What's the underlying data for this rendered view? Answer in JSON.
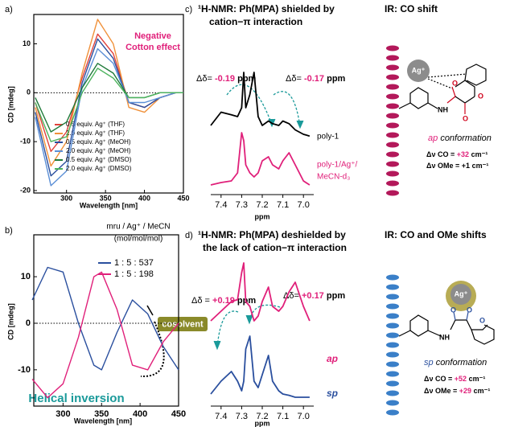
{
  "chart_data": [
    {
      "type": "line",
      "panel": "a)",
      "ylabel": "CD [mdeg]",
      "xlabel": "Wavelength [nm]",
      "annotation": [
        "Negative",
        "Cotton effect"
      ],
      "x": [
        260,
        280,
        300,
        320,
        340,
        360,
        380,
        400,
        420,
        440,
        450
      ],
      "xlim": [
        258,
        450
      ],
      "xticks": [
        300,
        350,
        400,
        450
      ],
      "ylim": [
        -20.5,
        16
      ],
      "yticks": [
        -20,
        -10,
        0,
        10
      ],
      "series": [
        {
          "name": "0.5 equiv. Ag⁺ (THF)",
          "color": "#e0413a",
          "values": [
            -2,
            -12,
            -8,
            3,
            12,
            8,
            -2,
            -3,
            -1,
            0,
            0
          ]
        },
        {
          "name": "2.0 equiv. Ag⁺ (THF)",
          "color": "#f0913a",
          "values": [
            -3,
            -15,
            -10,
            4,
            15,
            10,
            -3,
            -4,
            -1,
            0,
            0
          ]
        },
        {
          "name": "0.5 equiv. Ag⁺ (MeOH)",
          "color": "#2a4f9e",
          "values": [
            -4,
            -17,
            -14,
            2,
            11,
            7,
            -2,
            -3,
            -1,
            0,
            0
          ]
        },
        {
          "name": "2.0 equiv. Ag⁺ (MeOH)",
          "color": "#5b8fd6",
          "values": [
            -5,
            -19,
            -16,
            1,
            9,
            6,
            -2,
            -2,
            -1,
            0,
            0
          ]
        },
        {
          "name": "0.5 equiv. Ag⁺ (DMSO)",
          "color": "#1f7a3a",
          "values": [
            -1,
            -8,
            -6,
            1,
            6,
            4,
            -1,
            -1,
            0,
            0,
            0
          ]
        },
        {
          "name": "2.0 equiv. Ag⁺ (DMSO)",
          "color": "#4db35e",
          "values": [
            -2,
            -10,
            -9,
            0,
            5,
            3,
            -1,
            -1,
            0,
            0,
            0
          ]
        }
      ]
    },
    {
      "type": "line",
      "panel": "b)",
      "ylabel": "CD [mdeg]",
      "xlabel": "Wavelength [nm]",
      "legend_title": [
        "mru / Ag⁺ / MeCN",
        "(mol/mol/mol)"
      ],
      "annotations": [
        "cosolvent",
        "Helical inversion"
      ],
      "x": [
        260,
        280,
        300,
        320,
        340,
        350,
        370,
        390,
        410,
        430,
        450
      ],
      "xlim": [
        262,
        450
      ],
      "xticks": [
        300,
        350,
        400,
        450
      ],
      "ylim": [
        -17.8,
        19
      ],
      "yticks": [
        -10,
        0,
        10
      ],
      "series": [
        {
          "name": "1 : 5 : 537",
          "color": "#2a4f9e",
          "values": [
            5,
            12,
            11,
            0,
            -9,
            -10,
            -2,
            5,
            2,
            -5,
            -10
          ]
        },
        {
          "name": "1 : 5 : 198",
          "color": "#e0207a",
          "values": [
            -12,
            -16,
            -13,
            -3,
            10,
            11,
            3,
            -9,
            -10,
            -4,
            0
          ]
        }
      ]
    },
    {
      "type": "line",
      "panel": "c)",
      "title": [
        "¹H-NMR: Ph(MPA) shielded by",
        "cation−π interaction"
      ],
      "xlabel": "ppm",
      "shifts": [
        {
          "label": "Δδ=",
          "value": "-0.19",
          "unit": "ppm"
        },
        {
          "label": "Δδ=",
          "value": "-0.17",
          "unit": "ppm"
        }
      ],
      "x": [
        7.45,
        7.4,
        7.35,
        7.32,
        7.3,
        7.29,
        7.28,
        7.26,
        7.24,
        7.22,
        7.2,
        7.17,
        7.15,
        7.12,
        7.1,
        7.07,
        7.04,
        7.0,
        6.97
      ],
      "xlim": [
        7.45,
        6.95
      ],
      "xticks": [
        7.4,
        7.3,
        7.2,
        7.1,
        {
          "value": 7,
          "label": "7.0"
        }
      ],
      "series": [
        {
          "name": "poly-1",
          "color": "#000000",
          "values": [
            40,
            55,
            52,
            50,
            60,
            100,
            60,
            75,
            100,
            50,
            40,
            45,
            42,
            40,
            45,
            42,
            35,
            30,
            28
          ]
        },
        {
          "name": [
            "poly-1/Ag⁺/",
            "MeCN-d₃"
          ],
          "color": "#e0207a",
          "values": [
            5,
            8,
            10,
            20,
            70,
            60,
            30,
            20,
            15,
            20,
            35,
            40,
            30,
            25,
            35,
            45,
            30,
            10,
            5
          ]
        }
      ]
    },
    {
      "type": "line",
      "panel": "d)",
      "title": [
        "¹H-NMR: Ph(MPA) deshielded by",
        "the lack of cation−π interaction"
      ],
      "xlabel": "ppm",
      "shifts": [
        {
          "label": "Δδ =",
          "value": "+0.19",
          "unit": "ppm"
        },
        {
          "label": "Δδ=",
          "value": "+0.17",
          "unit": "ppm"
        }
      ],
      "x": [
        7.45,
        7.4,
        7.35,
        7.32,
        7.3,
        7.29,
        7.28,
        7.26,
        7.24,
        7.22,
        7.2,
        7.17,
        7.15,
        7.12,
        7.1,
        7.07,
        7.04,
        7.0,
        6.97
      ],
      "xlim": [
        7.45,
        6.95
      ],
      "xticks": [
        7.4,
        7.3,
        7.2,
        7.1,
        {
          "value": 7,
          "label": "7.0"
        }
      ],
      "series": [
        {
          "name": "ap",
          "color": "#e0207a",
          "values": [
            40,
            50,
            60,
            62,
            90,
            100,
            60,
            55,
            40,
            45,
            60,
            75,
            55,
            50,
            55,
            70,
            80,
            55,
            40
          ]
        },
        {
          "name": "sp",
          "color": "#2a4f9e",
          "values": [
            10,
            30,
            45,
            30,
            15,
            30,
            80,
            100,
            30,
            20,
            40,
            70,
            30,
            15,
            10,
            8,
            5,
            5,
            5
          ]
        }
      ]
    }
  ],
  "ir": [
    {
      "title": "IR: CO shift",
      "ion": "Ag⁺",
      "amine": "NH",
      "oxygen": [
        "O",
        "O",
        "O"
      ],
      "conformation": [
        "ap",
        "conformation"
      ],
      "shifts": [
        {
          "label": "Δν CO",
          "eq": "=",
          "value": "+32",
          "unit": "cm⁻¹"
        },
        {
          "label": "Δν OMe",
          "eq": "=",
          "value": "+1",
          "unit": "cm⁻¹"
        }
      ]
    },
    {
      "title": "IR: CO and OMe shifts",
      "ion": "Ag⁺",
      "amine": "NH",
      "oxygen": [
        "O",
        "O",
        "O"
      ],
      "conformation": [
        "sp",
        "conformation"
      ],
      "shifts": [
        {
          "label": "Δν CO",
          "eq": "=",
          "value": "+52",
          "unit": "cm⁻¹"
        },
        {
          "label": "Δν OMe",
          "eq": "=",
          "value": "+29",
          "unit": "cm⁻¹"
        }
      ]
    }
  ]
}
